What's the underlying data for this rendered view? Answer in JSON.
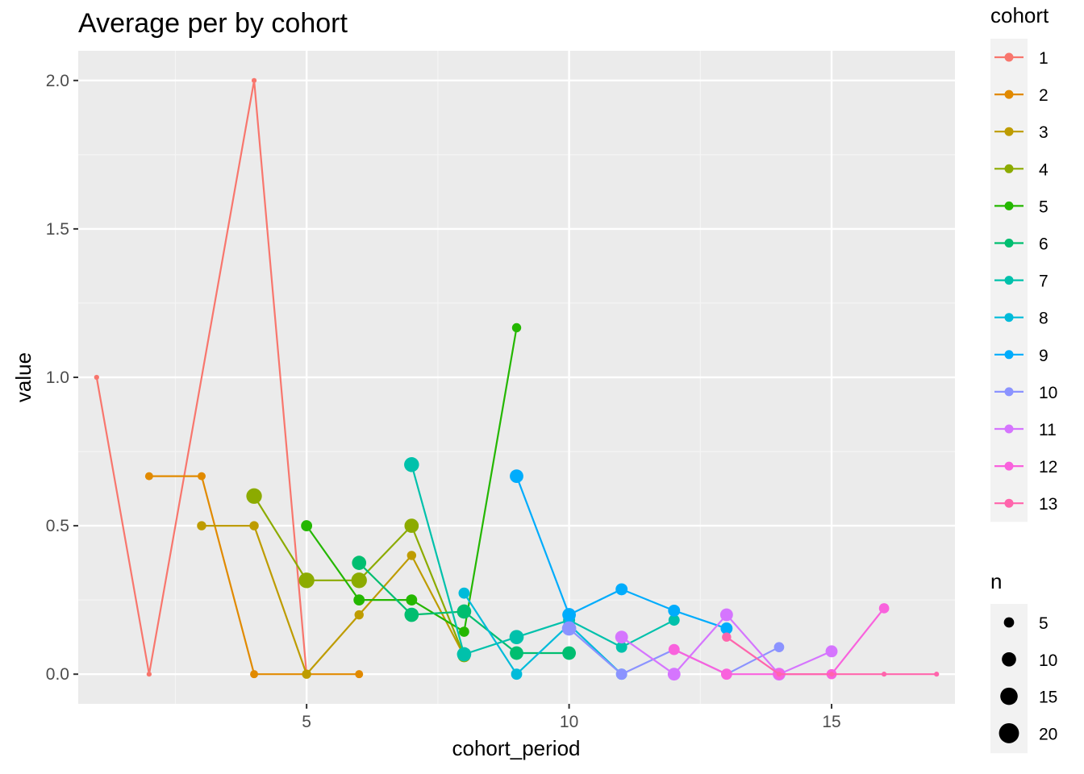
{
  "chart_data": {
    "type": "line",
    "title": "Average per by cohort",
    "xlabel": "cohort_period",
    "ylabel": "value",
    "xlim": [
      0.65,
      17.35
    ],
    "ylim": [
      -0.1,
      2.1
    ],
    "x_ticks": [
      5,
      10,
      15
    ],
    "y_ticks": [
      0.0,
      0.5,
      1.0,
      1.5,
      2.0
    ],
    "x_tick_labels": [
      "5",
      "10",
      "15"
    ],
    "y_tick_labels": [
      "0.0",
      "0.5",
      "1.0",
      "1.5",
      "2.0"
    ],
    "grid": true,
    "legend_position": "right",
    "color_legend": {
      "title": "cohort",
      "entries": [
        {
          "label": "1",
          "color": "#F8766D"
        },
        {
          "label": "2",
          "color": "#E18A00"
        },
        {
          "label": "3",
          "color": "#BE9C00"
        },
        {
          "label": "4",
          "color": "#8CAB00"
        },
        {
          "label": "5",
          "color": "#24B700"
        },
        {
          "label": "6",
          "color": "#00BE70"
        },
        {
          "label": "7",
          "color": "#00C1AB"
        },
        {
          "label": "8",
          "color": "#00BBDA"
        },
        {
          "label": "9",
          "color": "#00ACFC"
        },
        {
          "label": "10",
          "color": "#8B93FF"
        },
        {
          "label": "11",
          "color": "#D575FE"
        },
        {
          "label": "12",
          "color": "#F962DD"
        },
        {
          "label": "13",
          "color": "#FF65AC"
        }
      ]
    },
    "size_legend": {
      "title": "n",
      "entries": [
        {
          "label": "5",
          "n": 5
        },
        {
          "label": "10",
          "n": 10
        },
        {
          "label": "15",
          "n": 15
        },
        {
          "label": "20",
          "n": 20
        }
      ]
    },
    "series": [
      {
        "name": "1",
        "color": "#F8766D",
        "points": [
          {
            "x": 1,
            "y": 1.0,
            "n": 1
          },
          {
            "x": 2,
            "y": 0.0,
            "n": 1
          },
          {
            "x": 4,
            "y": 2.0,
            "n": 1
          },
          {
            "x": 5,
            "y": 0.0,
            "n": 1
          }
        ]
      },
      {
        "name": "2",
        "color": "#E18A00",
        "points": [
          {
            "x": 2,
            "y": 0.667,
            "n": 3
          },
          {
            "x": 3,
            "y": 0.667,
            "n": 3
          },
          {
            "x": 4,
            "y": 0.0,
            "n": 3
          },
          {
            "x": 5,
            "y": 0.0,
            "n": 3
          },
          {
            "x": 6,
            "y": 0.0,
            "n": 3
          }
        ]
      },
      {
        "name": "3",
        "color": "#BE9C00",
        "points": [
          {
            "x": 3,
            "y": 0.5,
            "n": 4
          },
          {
            "x": 4,
            "y": 0.5,
            "n": 4
          },
          {
            "x": 5,
            "y": 0.0,
            "n": 4
          },
          {
            "x": 6,
            "y": 0.2,
            "n": 4
          },
          {
            "x": 7,
            "y": 0.4,
            "n": 4
          },
          {
            "x": 8,
            "y": 0.062,
            "n": 8
          }
        ]
      },
      {
        "name": "4",
        "color": "#8CAB00",
        "points": [
          {
            "x": 4,
            "y": 0.6,
            "n": 12
          },
          {
            "x": 5,
            "y": 0.316,
            "n": 12
          },
          {
            "x": 6,
            "y": 0.316,
            "n": 12
          },
          {
            "x": 7,
            "y": 0.5,
            "n": 10
          },
          {
            "x": 8,
            "y": 0.062,
            "n": 8
          }
        ]
      },
      {
        "name": "5",
        "color": "#24B700",
        "points": [
          {
            "x": 5,
            "y": 0.5,
            "n": 6
          },
          {
            "x": 6,
            "y": 0.25,
            "n": 6
          },
          {
            "x": 7,
            "y": 0.25,
            "n": 6
          },
          {
            "x": 8,
            "y": 0.143,
            "n": 5
          },
          {
            "x": 9,
            "y": 1.167,
            "n": 4
          }
        ]
      },
      {
        "name": "6",
        "color": "#00BE70",
        "points": [
          {
            "x": 6,
            "y": 0.375,
            "n": 10
          },
          {
            "x": 7,
            "y": 0.2,
            "n": 10
          },
          {
            "x": 8,
            "y": 0.211,
            "n": 10
          },
          {
            "x": 9,
            "y": 0.071,
            "n": 9
          },
          {
            "x": 10,
            "y": 0.071,
            "n": 9
          }
        ]
      },
      {
        "name": "7",
        "color": "#00C1AB",
        "points": [
          {
            "x": 7,
            "y": 0.706,
            "n": 11
          },
          {
            "x": 8,
            "y": 0.067,
            "n": 10
          },
          {
            "x": 9,
            "y": 0.125,
            "n": 10
          },
          {
            "x": 10,
            "y": 0.182,
            "n": 7
          },
          {
            "x": 11,
            "y": 0.091,
            "n": 6
          },
          {
            "x": 12,
            "y": 0.182,
            "n": 6
          }
        ]
      },
      {
        "name": "8",
        "color": "#00BBDA",
        "points": [
          {
            "x": 8,
            "y": 0.273,
            "n": 6
          },
          {
            "x": 9,
            "y": 0.0,
            "n": 6
          },
          {
            "x": 10,
            "y": 0.167,
            "n": 6
          },
          {
            "x": 11,
            "y": 0.0,
            "n": 6
          }
        ]
      },
      {
        "name": "9",
        "color": "#00ACFC",
        "points": [
          {
            "x": 9,
            "y": 0.667,
            "n": 9
          },
          {
            "x": 10,
            "y": 0.2,
            "n": 9
          },
          {
            "x": 11,
            "y": 0.286,
            "n": 7
          },
          {
            "x": 12,
            "y": 0.214,
            "n": 7
          },
          {
            "x": 13,
            "y": 0.154,
            "n": 7
          }
        ]
      },
      {
        "name": "10",
        "color": "#8B93FF",
        "points": [
          {
            "x": 10,
            "y": 0.154,
            "n": 10
          },
          {
            "x": 11,
            "y": 0.0,
            "n": 6
          },
          {
            "x": 12,
            "y": 0.083,
            "n": 5
          },
          {
            "x": 13,
            "y": 0.0,
            "n": 5
          },
          {
            "x": 14,
            "y": 0.091,
            "n": 5
          }
        ]
      },
      {
        "name": "11",
        "color": "#D575FE",
        "points": [
          {
            "x": 11,
            "y": 0.125,
            "n": 8
          },
          {
            "x": 12,
            "y": 0.0,
            "n": 8
          },
          {
            "x": 13,
            "y": 0.2,
            "n": 8
          },
          {
            "x": 14,
            "y": 0.0,
            "n": 8
          },
          {
            "x": 15,
            "y": 0.077,
            "n": 7
          }
        ]
      },
      {
        "name": "12",
        "color": "#F962DD",
        "points": [
          {
            "x": 12,
            "y": 0.083,
            "n": 6
          },
          {
            "x": 13,
            "y": 0.0,
            "n": 6
          },
          {
            "x": 14,
            "y": 0.0,
            "n": 6
          },
          {
            "x": 15,
            "y": 0.0,
            "n": 5
          },
          {
            "x": 16,
            "y": 0.222,
            "n": 5
          }
        ]
      },
      {
        "name": "13",
        "color": "#FF65AC",
        "points": [
          {
            "x": 13,
            "y": 0.125,
            "n": 4
          },
          {
            "x": 14,
            "y": 0.0,
            "n": 1
          },
          {
            "x": 15,
            "y": 0.0,
            "n": 1
          },
          {
            "x": 16,
            "y": 0.0,
            "n": 1
          },
          {
            "x": 17,
            "y": 0.0,
            "n": 1
          }
        ]
      }
    ]
  }
}
